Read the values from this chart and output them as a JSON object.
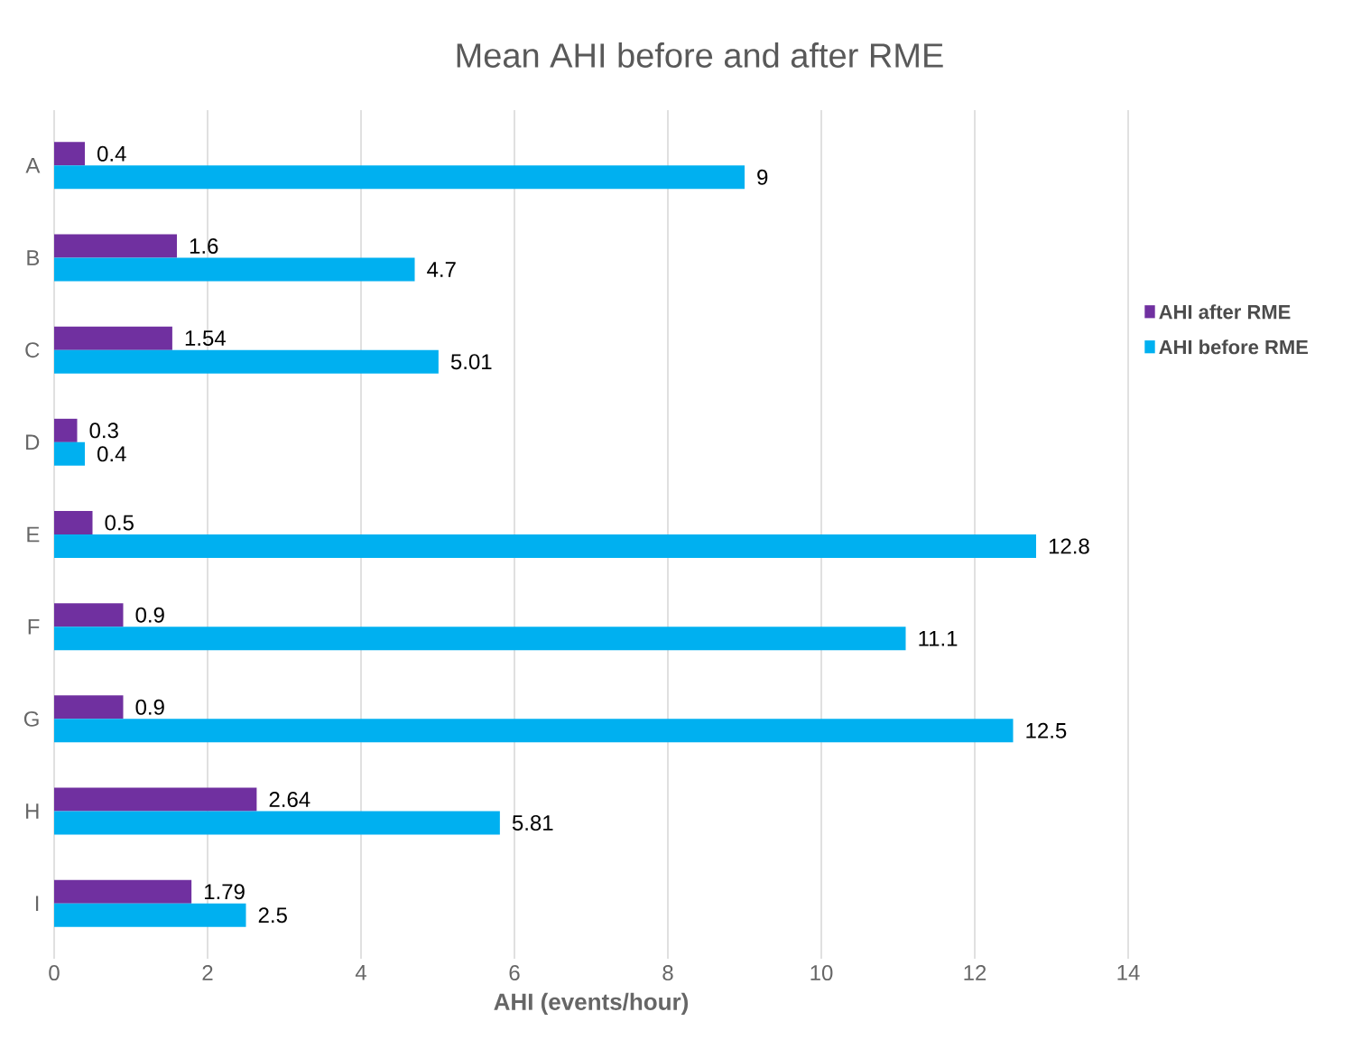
{
  "chart_data": {
    "type": "bar",
    "orientation": "horizontal",
    "title": "Mean AHI before and after RME",
    "xlabel": "AHI (events/hour)",
    "categories": [
      "A",
      "B",
      "C",
      "D",
      "E",
      "F",
      "G",
      "H",
      "I"
    ],
    "series": [
      {
        "name": "AHI after RME",
        "color": "#7030a0",
        "values": [
          0.4,
          1.6,
          1.54,
          0.3,
          0.5,
          0.9,
          0.9,
          2.64,
          1.79
        ]
      },
      {
        "name": "AHI before RME",
        "color": "#00b0f0",
        "values": [
          9,
          4.7,
          5.01,
          0.4,
          12.8,
          11.1,
          12.5,
          5.81,
          2.5
        ]
      }
    ],
    "xlim": [
      0,
      14
    ],
    "xticks": [
      0,
      2,
      4,
      6,
      8,
      10,
      12,
      14
    ],
    "grid": "x",
    "legend": "right",
    "data_labels": true
  }
}
